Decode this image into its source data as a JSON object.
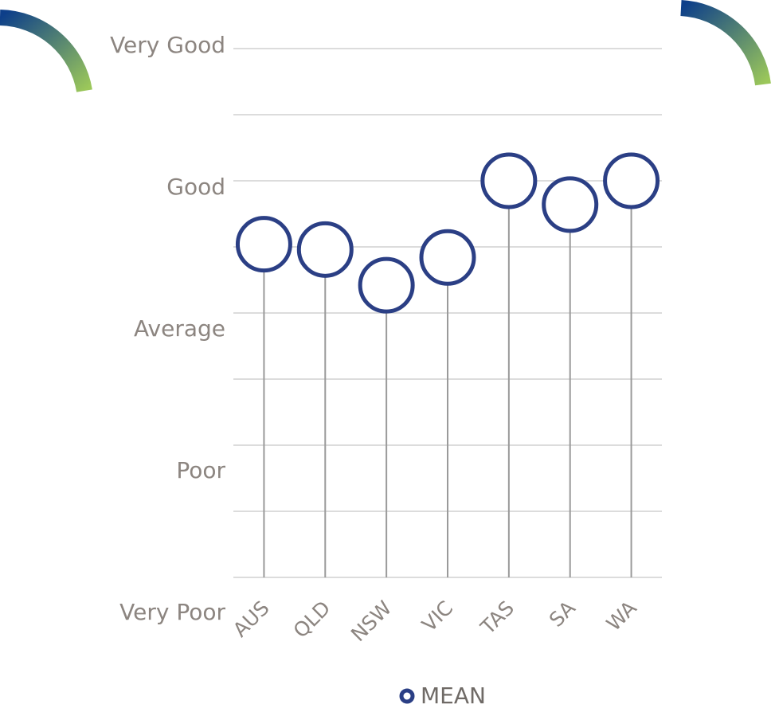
{
  "chart_data": {
    "type": "lollipop",
    "categories": [
      "AUS",
      "QLD",
      "NSW",
      "VIC",
      "TAS",
      "SA",
      "WA"
    ],
    "series": [
      {
        "name": "MEAN",
        "color": "#2b3f85",
        "values": [
          3.52,
          3.48,
          3.21,
          3.42,
          4.0,
          3.82,
          4.0
        ]
      }
    ],
    "ylim": [
      1,
      5
    ],
    "yticks": [
      {
        "value": 1,
        "label": "Very Poor"
      },
      {
        "value": 2,
        "label": "Poor"
      },
      {
        "value": 3,
        "label": "Average"
      },
      {
        "value": 4,
        "label": "Good"
      },
      {
        "value": 5,
        "label": "Very Good"
      }
    ],
    "minor_yticks": [
      1.5,
      2.5,
      3.5,
      4.5
    ],
    "grid": true
  }
}
